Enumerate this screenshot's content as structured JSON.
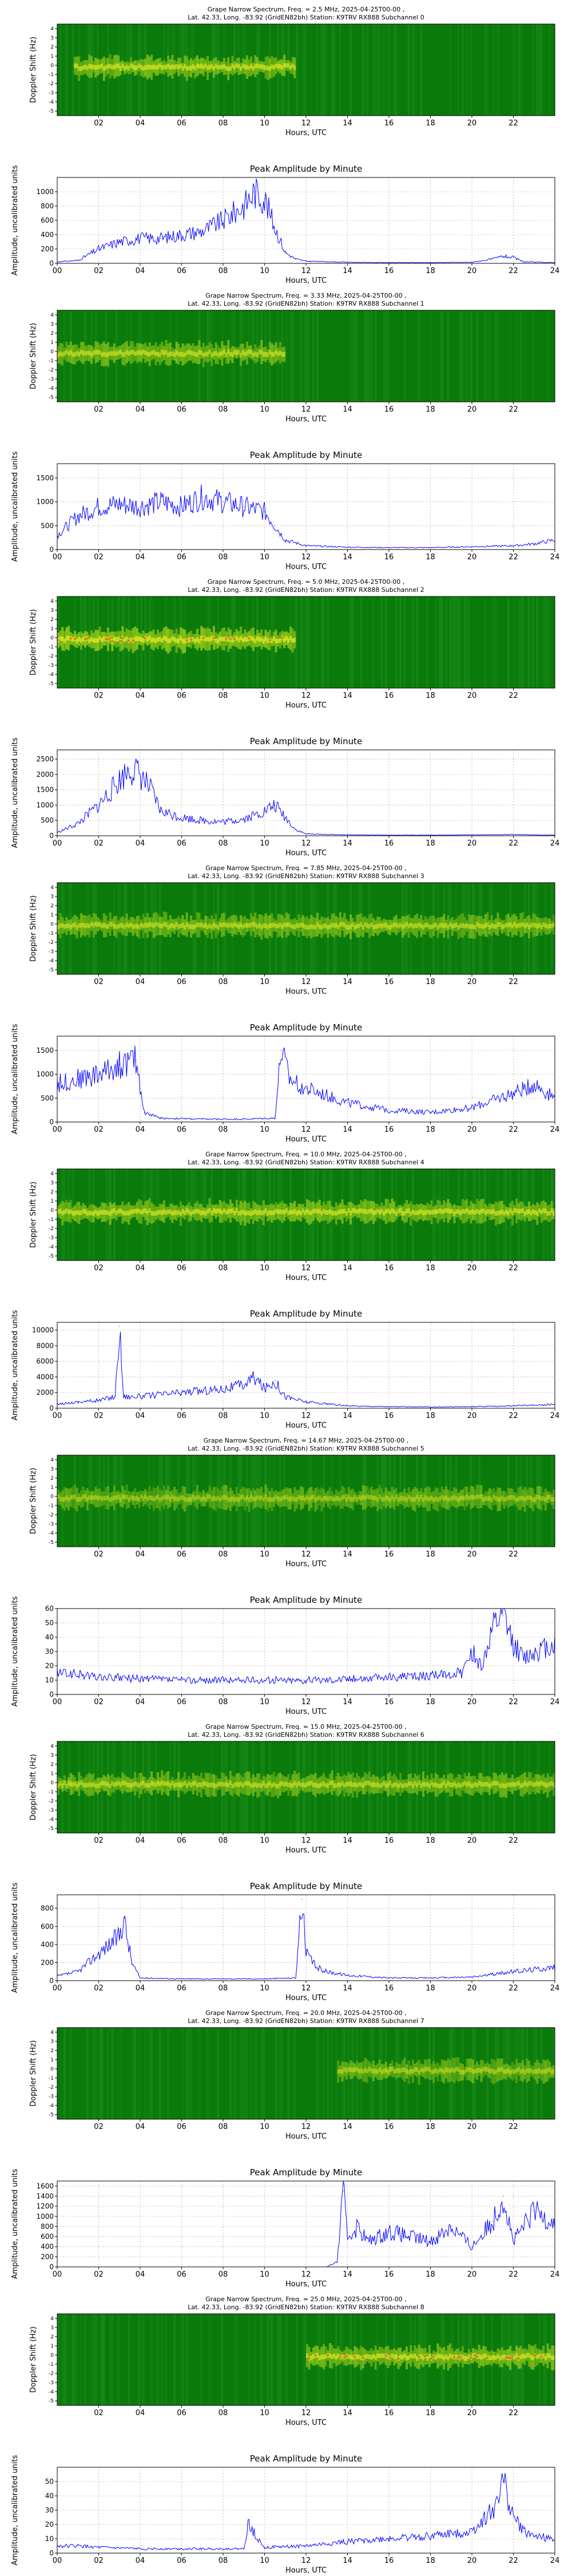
{
  "figure": {
    "spec_ylabel": "Doppler Shift (Hz)",
    "spec_yticks": [
      "-5",
      "-4",
      "-3",
      "-2",
      "-1",
      "0",
      "1",
      "2",
      "3",
      "4"
    ],
    "spec_xticks": [
      "02",
      "04",
      "06",
      "08",
      "10",
      "12",
      "14",
      "16",
      "18",
      "20",
      "22"
    ],
    "amp_xticks": [
      "00",
      "02",
      "04",
      "06",
      "08",
      "10",
      "12",
      "14",
      "16",
      "18",
      "20",
      "22",
      "24"
    ],
    "xlabel": "Hours, UTC",
    "amp_title": "Peak Amplitude by Minute",
    "amp_ylabel": "Amplitude, uncalibrated units",
    "colors": {
      "spec_bg": "#0a7a0a",
      "line": "#0000ff",
      "grid": "#b0b0b0"
    }
  },
  "panels": [
    {
      "title_line1": "Grape Narrow Spectrum, Freq. = 2.5 MHz, 2025-04-25T00-00 ,",
      "title_line2": "Lat.  42.33, Long. -83.92 (GridEN82bh) Station: K9TRV RX888 Subchannel 0",
      "spectrogram": {
        "signal_hours": [
          0.8,
          11.5
        ],
        "intensity": 0.8
      },
      "chart_data": {
        "type": "line",
        "ylim": [
          0,
          1200
        ],
        "yticks": [
          0,
          200,
          400,
          600,
          800,
          1000
        ],
        "x": [
          0,
          1,
          2,
          3,
          4,
          5,
          6,
          7,
          8,
          9,
          9.5,
          10,
          10.5,
          11,
          11.5,
          12,
          14,
          16,
          18,
          20,
          21,
          21.5,
          22,
          22.5,
          24
        ],
        "values": [
          20,
          40,
          200,
          300,
          350,
          350,
          400,
          450,
          600,
          800,
          1000,
          900,
          500,
          150,
          60,
          30,
          15,
          10,
          10,
          15,
          60,
          100,
          80,
          20,
          10
        ]
      }
    },
    {
      "title_line1": "Grape Narrow Spectrum, Freq. = 3.33 MHz, 2025-04-25T00-00 ,",
      "title_line2": "Lat.  42.33, Long. -83.92 (GridEN82bh) Station: K9TRV RX888 Subchannel 1",
      "spectrogram": {
        "signal_hours": [
          0.0,
          11.0
        ],
        "intensity": 0.75
      },
      "chart_data": {
        "type": "line",
        "ylim": [
          0,
          1800
        ],
        "yticks": [
          0,
          500,
          1000,
          1500
        ],
        "x": [
          0,
          1,
          2,
          3,
          4,
          5,
          6,
          7,
          8,
          9,
          10,
          10.5,
          11,
          12,
          14,
          16,
          18,
          20,
          22,
          23,
          24
        ],
        "values": [
          300,
          700,
          900,
          950,
          900,
          1000,
          900,
          1100,
          1000,
          900,
          800,
          500,
          200,
          80,
          50,
          40,
          40,
          60,
          80,
          120,
          200
        ]
      }
    },
    {
      "title_line1": "Grape Narrow Spectrum, Freq. = 5.0 MHz, 2025-04-25T00-00 ,",
      "title_line2": "Lat.  42.33, Long. -83.92 (GridEN82bh) Station: K9TRV RX888 Subchannel 2",
      "spectrogram": {
        "signal_hours": [
          0.0,
          11.5
        ],
        "intensity": 0.95
      },
      "chart_data": {
        "type": "line",
        "ylim": [
          0,
          2800
        ],
        "yticks": [
          0,
          500,
          1000,
          1500,
          2000,
          2500
        ],
        "x": [
          0,
          1,
          2,
          3,
          3.5,
          4,
          4.5,
          5,
          6,
          7,
          8,
          9,
          10,
          10.5,
          11,
          11.5,
          12,
          14,
          16,
          18,
          20,
          22,
          24
        ],
        "values": [
          100,
          400,
          1000,
          1800,
          2200,
          2000,
          1500,
          800,
          600,
          500,
          450,
          550,
          800,
          1000,
          600,
          200,
          60,
          30,
          20,
          20,
          30,
          40,
          20
        ]
      }
    },
    {
      "title_line1": "Grape Narrow Spectrum, Freq. = 7.85 MHz, 2025-04-25T00-00 ,",
      "title_line2": "Lat.  42.33, Long. -83.92 (GridEN82bh) Station: K9TRV RX888 Subchannel 3",
      "spectrogram": {
        "signal_hours": [
          0.0,
          24.0
        ],
        "intensity": 0.7
      },
      "chart_data": {
        "type": "line",
        "ylim": [
          0,
          1800
        ],
        "yticks": [
          0,
          500,
          1000,
          1500
        ],
        "x": [
          0,
          1,
          2,
          3,
          3.8,
          4.2,
          5,
          7,
          9,
          10.5,
          10.8,
          11.2,
          12,
          14,
          16,
          18,
          20,
          22,
          23,
          24
        ],
        "values": [
          800,
          900,
          1000,
          1200,
          1300,
          200,
          80,
          60,
          60,
          80,
          1500,
          900,
          700,
          400,
          250,
          200,
          300,
          600,
          800,
          500
        ]
      }
    },
    {
      "title_line1": "Grape Narrow Spectrum, Freq. = 10.0 MHz, 2025-04-25T00-00 ,",
      "title_line2": "Lat.  42.33, Long. -83.92 (GridEN82bh) Station: K9TRV RX888 Subchannel 4",
      "spectrogram": {
        "signal_hours": [
          0.0,
          24.0
        ],
        "intensity": 0.8
      },
      "chart_data": {
        "type": "line",
        "ylim": [
          0,
          11000
        ],
        "yticks": [
          0,
          2000,
          4000,
          6000,
          8000,
          10000
        ],
        "x": [
          0,
          1,
          2,
          2.8,
          3,
          3.2,
          4,
          6,
          8,
          9,
          9.5,
          10,
          10.5,
          11,
          12,
          14,
          16,
          18,
          20,
          22,
          24
        ],
        "values": [
          500,
          800,
          1000,
          1500,
          10500,
          1500,
          1500,
          2000,
          2500,
          3000,
          4000,
          2500,
          3500,
          1500,
          800,
          300,
          200,
          150,
          200,
          300,
          500
        ]
      }
    },
    {
      "title_line1": "Grape Narrow Spectrum, Freq. = 14.67 MHz, 2025-04-25T00-00 ,",
      "title_line2": "Lat.  42.33, Long. -83.92 (GridEN82bh) Station: K9TRV RX888 Subchannel 5",
      "spectrogram": {
        "signal_hours": [
          0.0,
          24.0
        ],
        "intensity": 0.55
      },
      "chart_data": {
        "type": "line",
        "ylim": [
          0,
          60
        ],
        "yticks": [
          0,
          10,
          20,
          30,
          40,
          50,
          60
        ],
        "x": [
          0,
          1,
          2,
          4,
          6,
          8,
          10,
          12,
          14,
          16,
          18,
          19.5,
          20,
          20.5,
          21,
          21.5,
          22,
          22.5,
          23,
          24
        ],
        "values": [
          15,
          14,
          12,
          11,
          10,
          10,
          10,
          10,
          11,
          12,
          13,
          15,
          30,
          20,
          45,
          55,
          35,
          25,
          30,
          35
        ]
      }
    },
    {
      "title_line1": "Grape Narrow Spectrum, Freq. = 15.0 MHz, 2025-04-25T00-00 ,",
      "title_line2": "Lat.  42.33, Long. -83.92 (GridEN82bh) Station: K9TRV RX888 Subchannel 6",
      "spectrogram": {
        "signal_hours": [
          0.0,
          24.0
        ],
        "intensity": 0.7
      },
      "chart_data": {
        "type": "line",
        "ylim": [
          0,
          950
        ],
        "yticks": [
          0,
          200,
          400,
          600,
          800
        ],
        "x": [
          0,
          1,
          2,
          3,
          3.2,
          3.6,
          4,
          6,
          8,
          10,
          11.5,
          11.8,
          12,
          12.5,
          13,
          14,
          16,
          18,
          20,
          22,
          24
        ],
        "values": [
          50,
          100,
          300,
          500,
          700,
          200,
          30,
          20,
          20,
          20,
          30,
          900,
          300,
          150,
          100,
          60,
          30,
          30,
          40,
          100,
          150
        ]
      }
    },
    {
      "title_line1": "Grape Narrow Spectrum, Freq. = 20.0 MHz, 2025-04-25T00-00 ,",
      "title_line2": "Lat.  42.33, Long. -83.92 (GridEN82bh) Station: K9TRV RX888 Subchannel 7",
      "spectrogram": {
        "signal_hours": [
          13.5,
          24.0
        ],
        "intensity": 0.6
      },
      "chart_data": {
        "type": "line",
        "ylim": [
          0,
          1700
        ],
        "yticks": [
          0,
          200,
          400,
          600,
          800,
          1000,
          1200,
          1400,
          1600
        ],
        "x": [
          0,
          2,
          4,
          6,
          8,
          10,
          12,
          13,
          13.5,
          13.8,
          14,
          14.5,
          15,
          16,
          17,
          18,
          19,
          20,
          21,
          21.5,
          22,
          23,
          24
        ],
        "values": [
          0,
          0,
          0,
          0,
          0,
          0,
          0,
          0,
          100,
          1500,
          600,
          800,
          500,
          700,
          600,
          500,
          800,
          400,
          900,
          1400,
          500,
          1100,
          900
        ]
      }
    },
    {
      "title_line1": "Grape Narrow Spectrum, Freq. = 25.0 MHz, 2025-04-25T00-00 ,",
      "title_line2": "Lat.  42.33, Long. -83.92 (GridEN82bh) Station: K9TRV RX888 Subchannel 8",
      "spectrogram": {
        "signal_hours": [
          12.0,
          24.0
        ],
        "intensity": 0.85
      },
      "chart_data": {
        "type": "line",
        "ylim": [
          0,
          60
        ],
        "yticks": [
          0,
          10,
          20,
          30,
          40,
          50
        ],
        "x": [
          0,
          1,
          2,
          4,
          6,
          8,
          9,
          9.2,
          10,
          12,
          14,
          16,
          18,
          20,
          21,
          21.5,
          22,
          22.5,
          23,
          24
        ],
        "values": [
          5,
          5,
          4,
          3,
          3,
          3,
          3,
          20,
          4,
          5,
          8,
          10,
          12,
          15,
          30,
          50,
          25,
          15,
          12,
          10
        ]
      }
    }
  ]
}
